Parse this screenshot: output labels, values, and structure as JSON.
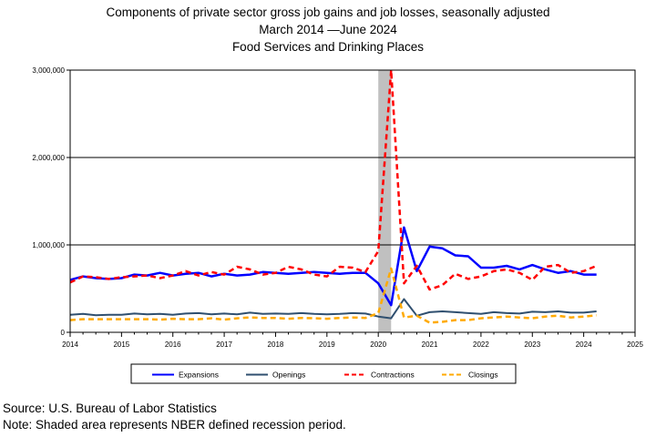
{
  "chart_data": {
    "type": "line",
    "title": "Components of private sector gross job gains and job losses, seasonally adjusted",
    "subtitle": "March 2014 —June 2024",
    "subtitle2": "Food Services and Drinking Places",
    "xlim": [
      2014,
      2025
    ],
    "ylim": [
      0,
      3000000
    ],
    "x_ticks": [
      2014,
      2015,
      2016,
      2017,
      2018,
      2019,
      2020,
      2021,
      2022,
      2023,
      2024,
      2025
    ],
    "y_ticks": [
      0,
      1000000,
      2000000,
      3000000
    ],
    "y_tick_labels": [
      "0",
      "1,000,000",
      "2,000,000",
      "3,000,000"
    ],
    "grid": "horizontal",
    "legend_position": "bottom",
    "recession": {
      "start": 2020.0,
      "end": 2020.25,
      "color": "#c0c0c0"
    },
    "x": [
      2014.0,
      2014.25,
      2014.5,
      2014.75,
      2015.0,
      2015.25,
      2015.5,
      2015.75,
      2016.0,
      2016.25,
      2016.5,
      2016.75,
      2017.0,
      2017.25,
      2017.5,
      2017.75,
      2018.0,
      2018.25,
      2018.5,
      2018.75,
      2019.0,
      2019.25,
      2019.5,
      2019.75,
      2020.0,
      2020.25,
      2020.5,
      2020.75,
      2021.0,
      2021.25,
      2021.5,
      2021.75,
      2022.0,
      2022.25,
      2022.5,
      2022.75,
      2023.0,
      2023.25,
      2023.5,
      2023.75,
      2024.0,
      2024.25
    ],
    "series": [
      {
        "name": "Expansions",
        "color": "#0000ff",
        "dash": "",
        "width": 2.5,
        "values": [
          600000,
          640000,
          620000,
          610000,
          620000,
          660000,
          650000,
          680000,
          650000,
          670000,
          680000,
          640000,
          670000,
          650000,
          660000,
          690000,
          680000,
          670000,
          680000,
          690000,
          680000,
          670000,
          680000,
          680000,
          560000,
          310000,
          1200000,
          700000,
          980000,
          960000,
          880000,
          870000,
          740000,
          740000,
          760000,
          720000,
          770000,
          720000,
          680000,
          700000,
          660000,
          660000
        ]
      },
      {
        "name": "Openings",
        "color": "#2f4f6f",
        "dash": "",
        "width": 2,
        "values": [
          200000,
          210000,
          195000,
          200000,
          200000,
          215000,
          205000,
          210000,
          200000,
          215000,
          220000,
          205000,
          215000,
          205000,
          225000,
          210000,
          215000,
          210000,
          220000,
          210000,
          205000,
          210000,
          220000,
          215000,
          180000,
          160000,
          380000,
          190000,
          230000,
          240000,
          230000,
          220000,
          210000,
          230000,
          220000,
          215000,
          235000,
          230000,
          240000,
          225000,
          225000,
          240000
        ]
      },
      {
        "name": "Contractions",
        "color": "#ff0000",
        "dash": "6,4",
        "width": 2.5,
        "values": [
          570000,
          640000,
          630000,
          610000,
          630000,
          640000,
          650000,
          620000,
          650000,
          700000,
          650000,
          690000,
          660000,
          750000,
          720000,
          660000,
          680000,
          750000,
          720000,
          660000,
          640000,
          750000,
          740000,
          690000,
          930000,
          3000000,
          560000,
          760000,
          490000,
          540000,
          670000,
          610000,
          640000,
          700000,
          720000,
          680000,
          600000,
          750000,
          770000,
          680000,
          700000,
          760000
        ]
      },
      {
        "name": "Closings",
        "color": "#ffaa00",
        "dash": "6,4",
        "width": 2.5,
        "values": [
          140000,
          150000,
          150000,
          150000,
          150000,
          150000,
          150000,
          145000,
          155000,
          150000,
          150000,
          160000,
          145000,
          160000,
          170000,
          165000,
          165000,
          155000,
          165000,
          160000,
          155000,
          165000,
          170000,
          165000,
          220000,
          730000,
          170000,
          190000,
          110000,
          120000,
          140000,
          140000,
          160000,
          170000,
          180000,
          170000,
          160000,
          180000,
          190000,
          170000,
          180000,
          195000
        ]
      }
    ]
  },
  "footer": {
    "source": "Source: U.S. Bureau of Labor Statistics",
    "note": "Note: Shaded area represents NBER defined recession period."
  }
}
